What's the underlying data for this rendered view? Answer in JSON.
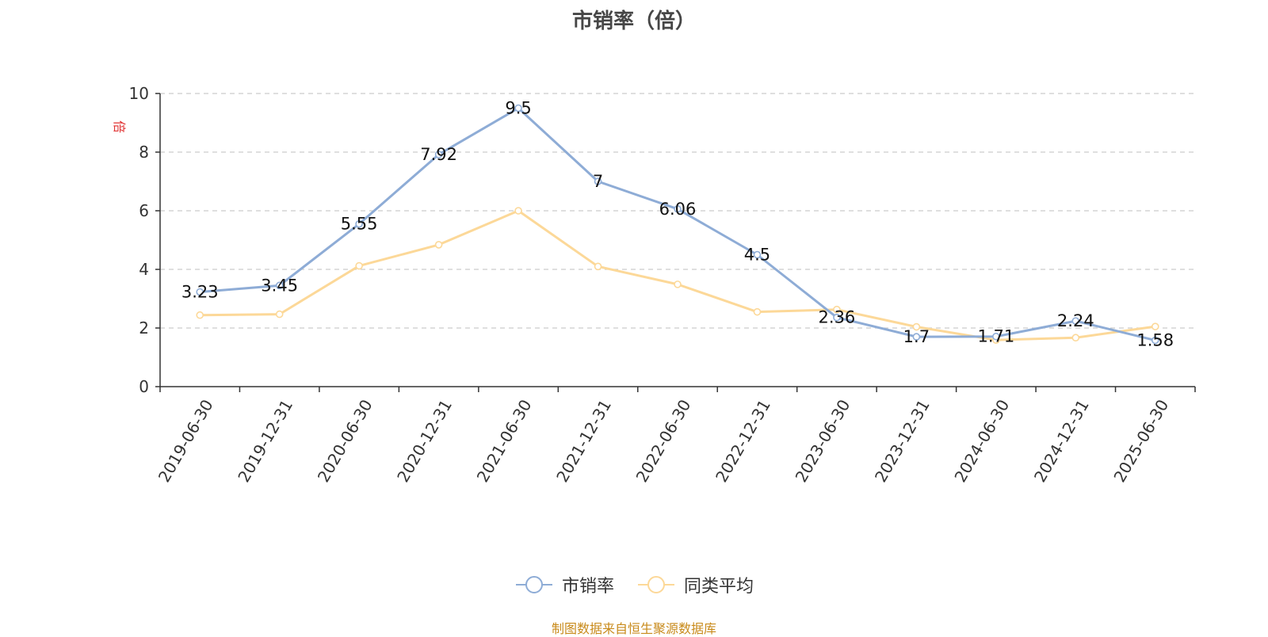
{
  "chart_data": {
    "type": "line",
    "title": "市销率（倍）",
    "ylabel": "倍",
    "ylim": [
      0,
      10
    ],
    "yticks": [
      "0",
      "2",
      "4",
      "6",
      "8",
      "10"
    ],
    "grid": "horizontal dashed",
    "categories": [
      "2019-06-30",
      "2019-12-31",
      "2020-06-30",
      "2020-12-31",
      "2021-06-30",
      "2021-12-31",
      "2022-06-30",
      "2022-12-31",
      "2023-06-30",
      "2023-12-31",
      "2024-06-30",
      "2024-12-31",
      "2025-06-30"
    ],
    "series": [
      {
        "name": "市销率",
        "color": "#8eacd6",
        "values": [
          3.23,
          3.45,
          5.55,
          7.92,
          9.5,
          7,
          6.06,
          4.5,
          2.36,
          1.7,
          1.71,
          2.24,
          1.58
        ],
        "labels": [
          "3.23",
          "3.45",
          "5.55",
          "7.92",
          "9.5",
          "7",
          "6.06",
          "4.5",
          "2.36",
          "1.7",
          "1.71",
          "2.24",
          "1.58"
        ]
      },
      {
        "name": "同类平均",
        "color": "#fcd898",
        "values": [
          2.44,
          2.47,
          4.12,
          4.84,
          6.0,
          4.1,
          3.49,
          2.55,
          2.63,
          2.04,
          1.59,
          1.67,
          2.05
        ]
      }
    ],
    "legend_position": "bottom-center"
  },
  "source_note": "制图数据来自恒生聚源数据库"
}
